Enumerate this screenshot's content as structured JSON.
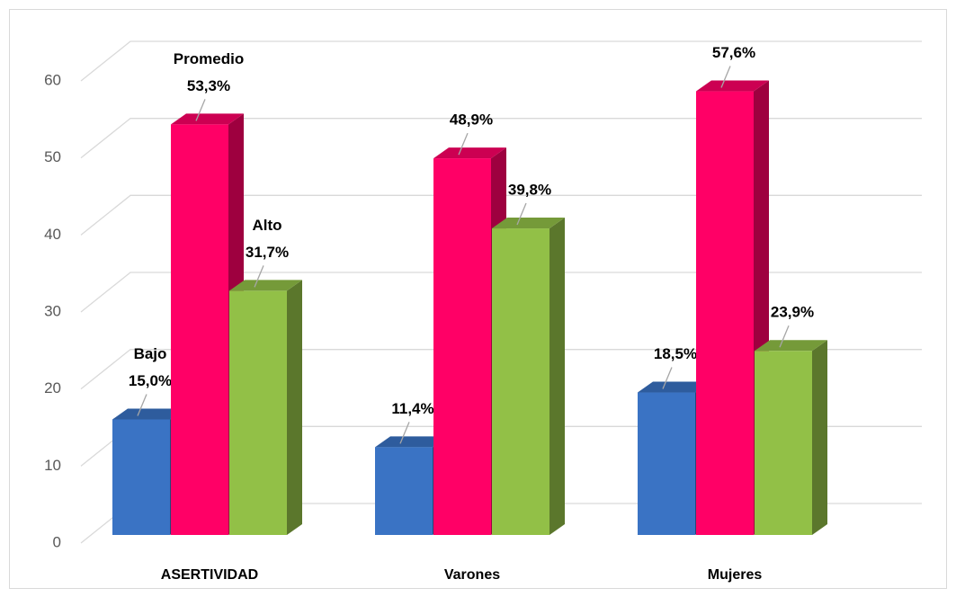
{
  "chart_data": {
    "type": "bar3d",
    "categories": [
      "ASERTIVIDAD",
      "Varones",
      "Mujeres"
    ],
    "series": [
      {
        "name": "Bajo",
        "color": "#3a73c4",
        "values": [
          15.0,
          11.4,
          18.5
        ],
        "value_labels": [
          "15,0%",
          "11,4%",
          "18,5%"
        ]
      },
      {
        "name": "Promedio",
        "color": "#ff0066",
        "values": [
          53.3,
          48.9,
          57.6
        ],
        "value_labels": [
          "53,3%",
          "48,9%",
          "57,6%"
        ]
      },
      {
        "name": "Alto",
        "color": "#92c047",
        "values": [
          31.7,
          39.8,
          23.9
        ],
        "value_labels": [
          "31,7%",
          "39,8%",
          "23,9%"
        ]
      }
    ],
    "ylim": [
      0,
      60
    ],
    "yticks": [
      0,
      10,
      20,
      30,
      40,
      50,
      60
    ],
    "grid": true
  }
}
